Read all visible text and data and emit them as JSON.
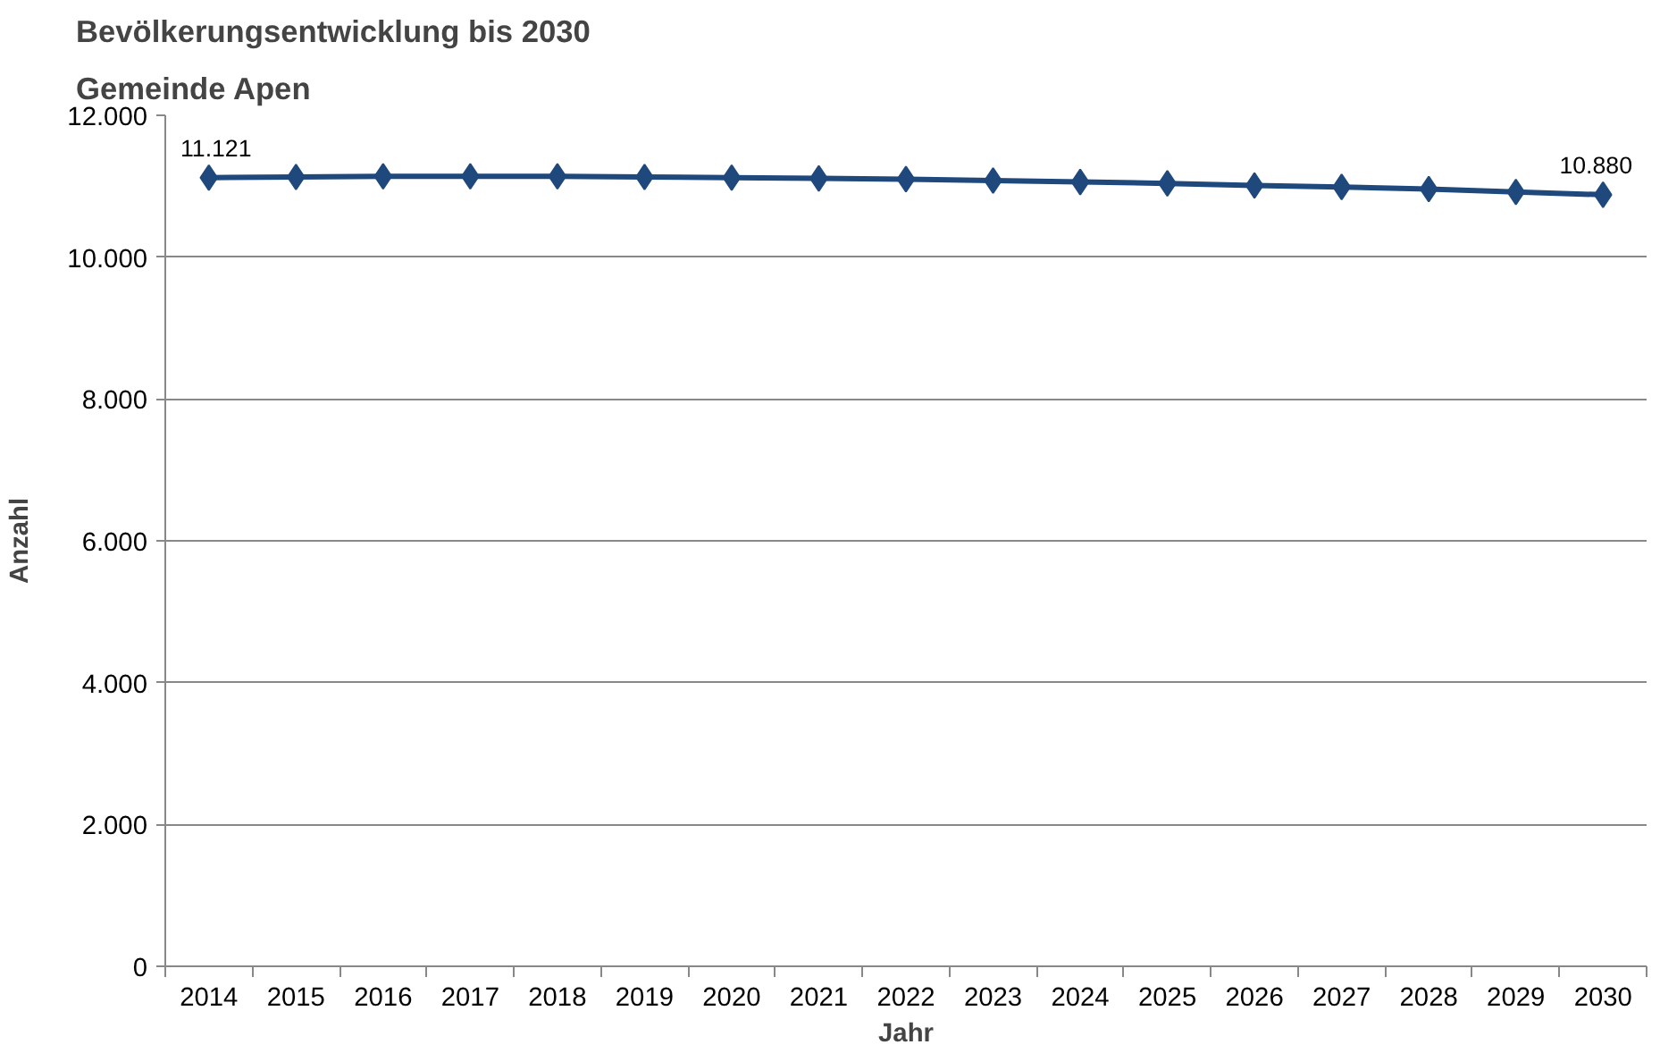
{
  "chart_data": {
    "type": "line",
    "title": "Bevölkerungsentwicklung bis 2030",
    "subtitle": "Gemeinde Apen",
    "xlabel": "Jahr",
    "ylabel": "Anzahl",
    "categories": [
      "2014",
      "2015",
      "2016",
      "2017",
      "2018",
      "2019",
      "2020",
      "2021",
      "2022",
      "2023",
      "2024",
      "2025",
      "2026",
      "2027",
      "2028",
      "2029",
      "2030"
    ],
    "series": [
      {
        "color": "#1f497d",
        "values": [
          11121,
          11130,
          11140,
          11140,
          11140,
          11130,
          11120,
          11110,
          11100,
          11080,
          11060,
          11040,
          11010,
          10990,
          10960,
          10920,
          10880
        ],
        "value_labels": [
          "11.121",
          null,
          null,
          null,
          null,
          null,
          null,
          null,
          null,
          null,
          null,
          null,
          null,
          null,
          null,
          null,
          "10.880"
        ]
      }
    ],
    "ylim": [
      0,
      12000
    ],
    "yticks": [
      0,
      {
        "value": 2000,
        "label": "2.000"
      },
      {
        "value": 4000,
        "label": "4.000"
      },
      {
        "value": 6000,
        "label": "6.000"
      },
      {
        "value": 8000,
        "label": "8.000"
      },
      {
        "value": 10000,
        "label": "10.000"
      },
      {
        "value": 12000,
        "label": "12.000"
      }
    ],
    "grid": "y",
    "marker": "diamond",
    "line_style": "solid"
  }
}
